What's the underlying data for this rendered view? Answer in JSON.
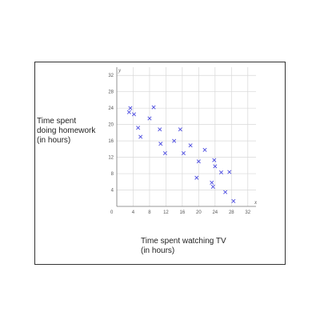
{
  "chart_data": {
    "type": "scatter",
    "title": "",
    "xlabel": "Time spent watching TV\n(in hours)",
    "ylabel": "Time spent\ndoing homework\n(in hours)",
    "x_axis_letter": "x",
    "y_axis_letter": "y",
    "origin_label": "0",
    "xlim": [
      0,
      34
    ],
    "ylim": [
      0,
      34
    ],
    "xticks": [
      4,
      8,
      12,
      16,
      20,
      24,
      28,
      32
    ],
    "yticks": [
      4,
      8,
      12,
      16,
      20,
      24,
      28,
      32
    ],
    "grid": true,
    "marker": "x",
    "marker_color": "#4a4ae0",
    "points": [
      {
        "x": 3,
        "y": 23
      },
      {
        "x": 3.3,
        "y": 24
      },
      {
        "x": 4.2,
        "y": 22.5
      },
      {
        "x": 5.2,
        "y": 19.2
      },
      {
        "x": 5.8,
        "y": 17
      },
      {
        "x": 8,
        "y": 21.5
      },
      {
        "x": 9,
        "y": 24.2
      },
      {
        "x": 10.5,
        "y": 18.8
      },
      {
        "x": 10.7,
        "y": 15.3
      },
      {
        "x": 11.8,
        "y": 13
      },
      {
        "x": 14,
        "y": 16
      },
      {
        "x": 15.5,
        "y": 18.8
      },
      {
        "x": 16.3,
        "y": 13
      },
      {
        "x": 18,
        "y": 14.9
      },
      {
        "x": 19.5,
        "y": 7
      },
      {
        "x": 20,
        "y": 11
      },
      {
        "x": 21.5,
        "y": 13.8
      },
      {
        "x": 23.2,
        "y": 5.8
      },
      {
        "x": 23.5,
        "y": 4.8
      },
      {
        "x": 23.8,
        "y": 11.3
      },
      {
        "x": 24,
        "y": 9.8
      },
      {
        "x": 25.5,
        "y": 8.3
      },
      {
        "x": 26.5,
        "y": 3.5
      },
      {
        "x": 27.5,
        "y": 8.4
      },
      {
        "x": 28.5,
        "y": 1.3
      }
    ]
  }
}
